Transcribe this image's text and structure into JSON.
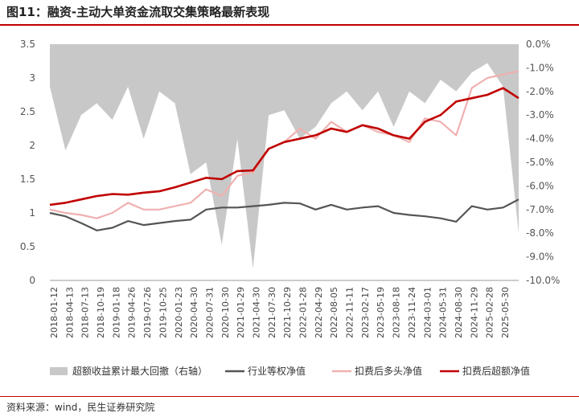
{
  "figure_title": "图11：融资-主动大单资金流取交集策略最新表现",
  "source_note": "资料来源：wind，民生证券研究院",
  "chart_data": {
    "type": "line",
    "title": "",
    "left_axis": {
      "ylim": [
        0,
        3.5
      ],
      "ticks": [
        0,
        0.5,
        1,
        1.5,
        2,
        2.5,
        3,
        3.5
      ],
      "tick_labels": [
        "0",
        "0.5",
        "1",
        "1.5",
        "2",
        "2.5",
        "3",
        "3.5"
      ]
    },
    "right_axis": {
      "ylim": [
        -10,
        0
      ],
      "ticks": [
        0,
        -1,
        -2,
        -3,
        -4,
        -5,
        -6,
        -7,
        -8,
        -9,
        -10
      ],
      "tick_labels": [
        "0.0%",
        "-1.0%",
        "-2.0%",
        "-3.0%",
        "-4.0%",
        "-5.0%",
        "-6.0%",
        "-7.0%",
        "-8.0%",
        "-9.0%",
        "-10.0%"
      ]
    },
    "x_tick_labels": [
      "2018-01-12",
      "2018-04-13",
      "2018-07-13",
      "2018-10-19",
      "2019-01-18",
      "2019-04-26",
      "2019-07-26",
      "2019-10-25",
      "2020-01-23",
      "2020-04-30",
      "2020-07-31",
      "2020-10-30",
      "2021-01-29",
      "2021-04-30",
      "2021-07-30",
      "2021-10-29",
      "2022-01-28",
      "2022-04-29",
      "2022-08-05",
      "2022-11-11",
      "2023-02-17",
      "2023-05-19",
      "2023-08-18",
      "2023-11-24",
      "2024-03-01",
      "2024-05-31",
      "2024-08-30",
      "2024-11-29",
      "2025-02-28",
      "2025-05-30"
    ],
    "x": [
      "2018-01",
      "2018-04",
      "2018-07",
      "2018-10",
      "2019-01",
      "2019-04",
      "2019-07",
      "2019-10",
      "2020-01",
      "2020-04",
      "2020-07",
      "2020-10",
      "2021-01",
      "2021-04",
      "2021-07",
      "2021-10",
      "2022-01",
      "2022-04",
      "2022-08",
      "2022-11",
      "2023-02",
      "2023-05",
      "2023-08",
      "2023-11",
      "2024-03",
      "2024-05",
      "2024-08",
      "2024-11",
      "2025-02",
      "2025-05",
      "2025-08"
    ],
    "series": [
      {
        "name": "超额收益累计最大回撤（右轴）",
        "type": "area",
        "axis": "right",
        "color": "#c8c8c8",
        "values": [
          -1.8,
          -4.5,
          -3.0,
          -2.5,
          -3.2,
          -1.8,
          -4.0,
          -2.0,
          -2.5,
          -5.5,
          -5.0,
          -8.5,
          -4.0,
          -9.5,
          -3.0,
          -2.8,
          -4.0,
          -3.5,
          -2.5,
          -2.0,
          -2.8,
          -2.0,
          -3.5,
          -2.0,
          -2.5,
          -1.5,
          -2.0,
          -1.2,
          -0.8,
          -1.8,
          -8.0
        ]
      },
      {
        "name": "行业等权净值",
        "type": "line",
        "axis": "left",
        "color": "#555555",
        "values": [
          1.0,
          0.95,
          0.85,
          0.74,
          0.78,
          0.88,
          0.82,
          0.85,
          0.88,
          0.9,
          1.05,
          1.08,
          1.08,
          1.1,
          1.12,
          1.15,
          1.14,
          1.05,
          1.12,
          1.05,
          1.08,
          1.1,
          1.0,
          0.97,
          0.95,
          0.92,
          0.87,
          1.1,
          1.05,
          1.08,
          1.2
        ]
      },
      {
        "name": "扣费后多头净值",
        "type": "line",
        "axis": "left",
        "color": "#f0b0b0",
        "values": [
          1.05,
          1.0,
          0.97,
          0.92,
          1.0,
          1.15,
          1.05,
          1.05,
          1.1,
          1.15,
          1.35,
          1.25,
          1.55,
          1.6,
          1.95,
          2.05,
          2.25,
          2.1,
          2.35,
          2.2,
          2.3,
          2.2,
          2.15,
          2.05,
          2.4,
          2.35,
          2.15,
          2.85,
          3.0,
          3.05,
          3.1
        ]
      },
      {
        "name": "扣费后超额净值",
        "type": "line",
        "axis": "left",
        "color": "#c00000",
        "values": [
          1.12,
          1.15,
          1.2,
          1.25,
          1.28,
          1.27,
          1.3,
          1.32,
          1.38,
          1.45,
          1.52,
          1.5,
          1.62,
          1.63,
          1.95,
          2.05,
          2.1,
          2.15,
          2.25,
          2.2,
          2.3,
          2.25,
          2.15,
          2.1,
          2.35,
          2.45,
          2.65,
          2.7,
          2.75,
          2.85,
          2.7
        ]
      }
    ],
    "grid": false,
    "legend_position": "bottom"
  }
}
